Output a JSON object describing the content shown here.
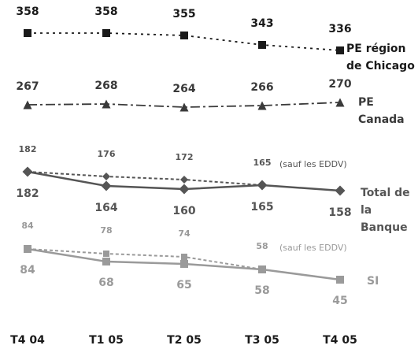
{
  "chart_data": {
    "type": "line",
    "categories": [
      "T4 04",
      "T1 05",
      "T2 05",
      "T3 05",
      "T4 05"
    ],
    "ylim": [
      0,
      400
    ],
    "series": [
      {
        "name": "PE région de Chicago",
        "color": "#1a1a1a",
        "values": [
          358,
          358,
          355,
          343,
          336
        ]
      },
      {
        "name": "PE Canada",
        "color": "#3a3a3a",
        "values": [
          267,
          268,
          264,
          266,
          270
        ]
      },
      {
        "name": "Total de la Banque",
        "color": "#555555",
        "values": [
          182,
          164,
          160,
          165,
          158
        ]
      },
      {
        "name": "(sauf les EDDV)",
        "color": "#555555",
        "values": [
          182,
          176,
          172,
          165,
          null
        ]
      },
      {
        "name": "SI",
        "color": "#9a9a9a",
        "values": [
          84,
          68,
          65,
          58,
          45
        ]
      },
      {
        "name": "(sauf les EDDV)",
        "color": "#9a9a9a",
        "values": [
          84,
          78,
          74,
          58,
          null
        ]
      }
    ]
  }
}
